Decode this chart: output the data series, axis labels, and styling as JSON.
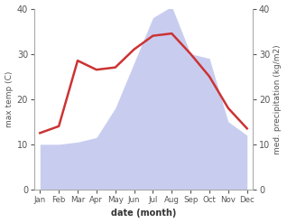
{
  "months": [
    "Jan",
    "Feb",
    "Mar",
    "Apr",
    "May",
    "Jun",
    "Jul",
    "Aug",
    "Sep",
    "Oct",
    "Nov",
    "Dec"
  ],
  "temp_max": [
    12.5,
    14.0,
    28.5,
    26.5,
    27.0,
    31.0,
    34.0,
    34.5,
    30.0,
    25.0,
    18.0,
    13.5
  ],
  "precipitation": [
    10.0,
    10.0,
    10.5,
    11.5,
    18.0,
    28.0,
    38.0,
    40.5,
    30.0,
    29.0,
    15.0,
    12.0
  ],
  "temp_color": "#cc3333",
  "precip_fill_color": "#c8cdf0",
  "ylabel_left": "max temp (C)",
  "ylabel_right": "med. precipitation (kg/m2)",
  "xlabel": "date (month)",
  "ylim_left": [
    0,
    40
  ],
  "ylim_right": [
    0,
    40
  ],
  "yticks_left": [
    0,
    10,
    20,
    30,
    40
  ],
  "yticks_right": [
    0,
    10,
    20,
    30,
    40
  ],
  "background_color": "#ffffff",
  "spine_color": "#aaaaaa",
  "tick_color": "#555555",
  "label_fontsize": 6.5,
  "tick_fontsize": 7,
  "xlabel_fontsize": 7,
  "month_fontsize": 6.2,
  "linewidth": 1.8
}
